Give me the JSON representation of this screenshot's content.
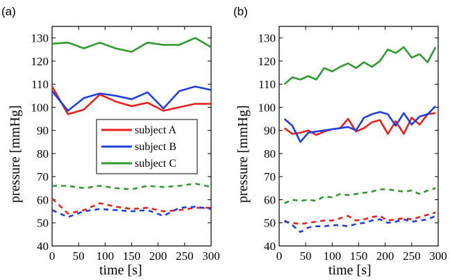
{
  "chart_data": [
    {
      "type": "line",
      "panel_label": "(a)",
      "xlabel": "time [s]",
      "ylabel": "pressure [mmHg]",
      "xlim": [
        0,
        300
      ],
      "ylim": [
        40,
        135
      ],
      "xticks": [
        0,
        50,
        100,
        150,
        200,
        250,
        300
      ],
      "yticks": [
        40,
        50,
        60,
        70,
        80,
        90,
        100,
        110,
        120,
        130
      ],
      "grid": false,
      "legend": {
        "placement": "center",
        "entries": [
          {
            "label": "subject A",
            "color": "#e8201c"
          },
          {
            "label": "subject B",
            "color": "#1f3fe0"
          },
          {
            "label": "subject C",
            "color": "#2e9a2e"
          }
        ]
      },
      "series": [
        {
          "name": "subject A",
          "color": "#e8201c",
          "style": "solid",
          "x": [
            0,
            30,
            60,
            90,
            120,
            150,
            180,
            210,
            240,
            270,
            300
          ],
          "y": [
            109,
            97,
            99,
            105.5,
            102.5,
            100.5,
            102,
            98.5,
            100,
            101.5,
            101.5
          ]
        },
        {
          "name": "subject B",
          "color": "#1f3fe0",
          "style": "solid",
          "x": [
            0,
            30,
            60,
            90,
            120,
            150,
            180,
            210,
            240,
            270,
            300
          ],
          "y": [
            107,
            98.5,
            104,
            106,
            105,
            103.5,
            106.5,
            99.5,
            107,
            109,
            107.5
          ]
        },
        {
          "name": "subject C",
          "color": "#2e9a2e",
          "style": "solid",
          "x": [
            0,
            30,
            60,
            90,
            120,
            150,
            180,
            210,
            240,
            270,
            300
          ],
          "y": [
            127.5,
            128,
            125.5,
            128,
            125.5,
            124,
            128,
            127,
            127,
            130,
            126
          ]
        },
        {
          "name": "subject A",
          "color": "#e8201c",
          "style": "dashed",
          "x": [
            0,
            30,
            60,
            90,
            120,
            150,
            180,
            210,
            240,
            270,
            300
          ],
          "y": [
            60.5,
            54,
            55.5,
            58.5,
            57,
            56,
            56.5,
            55,
            55.5,
            56.5,
            56.5
          ]
        },
        {
          "name": "subject B",
          "color": "#1f3fe0",
          "style": "dashed",
          "x": [
            0,
            30,
            60,
            90,
            120,
            150,
            180,
            210,
            240,
            270,
            300
          ],
          "y": [
            55.5,
            52.5,
            55,
            56,
            55.5,
            55,
            55.5,
            53,
            56.5,
            57,
            56
          ]
        },
        {
          "name": "subject C",
          "color": "#2e9a2e",
          "style": "dashed",
          "x": [
            0,
            30,
            60,
            90,
            120,
            150,
            180,
            210,
            240,
            270,
            300
          ],
          "y": [
            66,
            66,
            65,
            66,
            65,
            64.5,
            66,
            65.5,
            66,
            67,
            65.5
          ]
        }
      ]
    },
    {
      "type": "line",
      "panel_label": "(b)",
      "xlabel": "time [s]",
      "ylabel": "pressure [mmHg]",
      "xlim": [
        0,
        300
      ],
      "ylim": [
        40,
        135
      ],
      "xticks": [
        0,
        50,
        100,
        150,
        200,
        250,
        300
      ],
      "yticks": [
        40,
        50,
        60,
        70,
        80,
        90,
        100,
        110,
        120,
        130
      ],
      "grid": false,
      "series": [
        {
          "name": "subject A",
          "color": "#e8201c",
          "style": "solid",
          "x": [
            10,
            25,
            40,
            55,
            70,
            85,
            100,
            115,
            130,
            145,
            160,
            175,
            190,
            205,
            220,
            235,
            250,
            265,
            280,
            295
          ],
          "y": [
            91,
            88.5,
            89,
            90,
            88,
            89.5,
            90.5,
            91,
            95,
            89.5,
            91,
            93.5,
            94.5,
            88.5,
            94,
            88.5,
            95.5,
            92.5,
            97,
            97.5
          ]
        },
        {
          "name": "subject B",
          "color": "#1f3fe0",
          "style": "solid",
          "x": [
            10,
            25,
            40,
            55,
            70,
            85,
            100,
            115,
            130,
            145,
            160,
            175,
            190,
            205,
            220,
            235,
            250,
            265,
            280,
            295
          ],
          "y": [
            95,
            92,
            85,
            89,
            89.5,
            90,
            90.5,
            91,
            91.5,
            90,
            95.5,
            97,
            98,
            97,
            92,
            97.5,
            92.5,
            96,
            97,
            100.5
          ]
        },
        {
          "name": "subject C",
          "color": "#2e9a2e",
          "style": "solid",
          "x": [
            10,
            25,
            40,
            55,
            70,
            85,
            100,
            115,
            130,
            145,
            160,
            175,
            190,
            205,
            220,
            235,
            250,
            265,
            280,
            295
          ],
          "y": [
            110,
            113,
            112,
            113.5,
            112,
            117,
            115.5,
            117.5,
            119,
            117,
            119.5,
            117.5,
            120,
            125,
            123.5,
            126,
            121.5,
            123,
            119.5,
            126
          ]
        },
        {
          "name": "subject A",
          "color": "#e8201c",
          "style": "dashed",
          "x": [
            10,
            25,
            40,
            55,
            70,
            85,
            100,
            115,
            130,
            145,
            160,
            175,
            190,
            205,
            220,
            235,
            250,
            265,
            280,
            295
          ],
          "y": [
            50.5,
            50,
            49.5,
            50,
            50.5,
            51,
            51,
            52,
            53,
            51,
            51.5,
            52.5,
            53,
            51,
            51.5,
            52,
            51.5,
            52.5,
            53.5,
            54.5
          ]
        },
        {
          "name": "subject B",
          "color": "#1f3fe0",
          "style": "dashed",
          "x": [
            10,
            25,
            40,
            55,
            70,
            85,
            100,
            115,
            130,
            145,
            160,
            175,
            190,
            205,
            220,
            235,
            250,
            265,
            280,
            295
          ],
          "y": [
            51,
            49,
            46,
            48,
            48.5,
            48.5,
            49,
            49,
            48.5,
            49.5,
            50,
            51,
            51.5,
            50,
            50.5,
            51.5,
            50.5,
            51,
            51.5,
            53
          ]
        },
        {
          "name": "subject C",
          "color": "#2e9a2e",
          "style": "dashed",
          "x": [
            10,
            25,
            40,
            55,
            70,
            85,
            100,
            115,
            130,
            145,
            160,
            175,
            190,
            205,
            220,
            235,
            250,
            265,
            280,
            295
          ],
          "y": [
            58.5,
            60,
            59.5,
            60,
            59.5,
            61.5,
            61,
            62.5,
            62,
            62.5,
            63,
            63.5,
            64.5,
            64.5,
            64,
            63.5,
            64,
            62.5,
            64,
            65
          ]
        }
      ]
    }
  ]
}
